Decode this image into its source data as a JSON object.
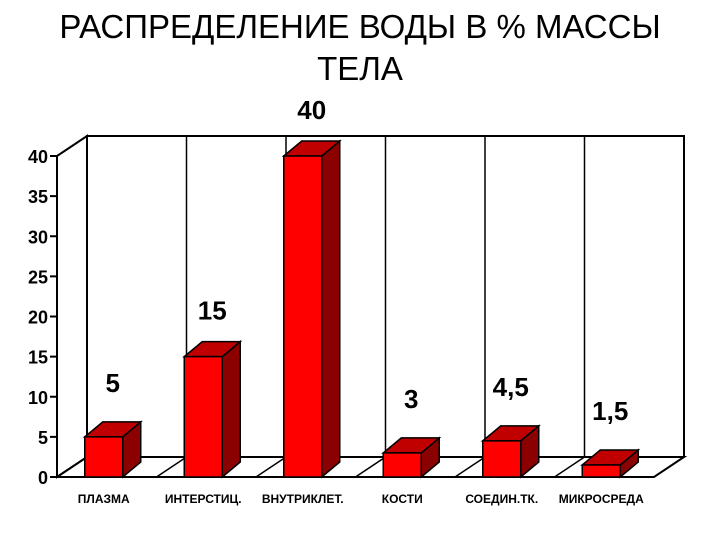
{
  "title_line1": "РАСПРЕДЕЛЕНИЕ ВОДЫ В % МАССЫ",
  "title_line2": "ТЕЛА",
  "chart_data": {
    "type": "bar",
    "title": "РАСПРЕДЕЛЕНИЕ ВОДЫ В % МАССЫ ТЕЛА",
    "categories": [
      "ПЛАЗМА",
      "ИНТЕРСТИЦ.",
      "ВНУТРИКЛЕТ.",
      "КОСТИ",
      "СОЕДИН.ТК.",
      "МИКРОСРЕДА"
    ],
    "values": [
      5,
      15,
      40,
      3,
      4.5,
      1.5
    ],
    "data_labels": [
      "5",
      "15",
      "40",
      "3",
      "4,5",
      "1,5"
    ],
    "y_ticks": [
      "0",
      "5",
      "10",
      "15",
      "20",
      "25",
      "30",
      "35",
      "40"
    ],
    "ylim": [
      0,
      40
    ],
    "xlabel": "",
    "ylabel": "",
    "grid": false,
    "bar_color": "#ff0000",
    "bar_side_color": "#8b0000",
    "bar_top_color": "#c00000",
    "style": "3d"
  }
}
